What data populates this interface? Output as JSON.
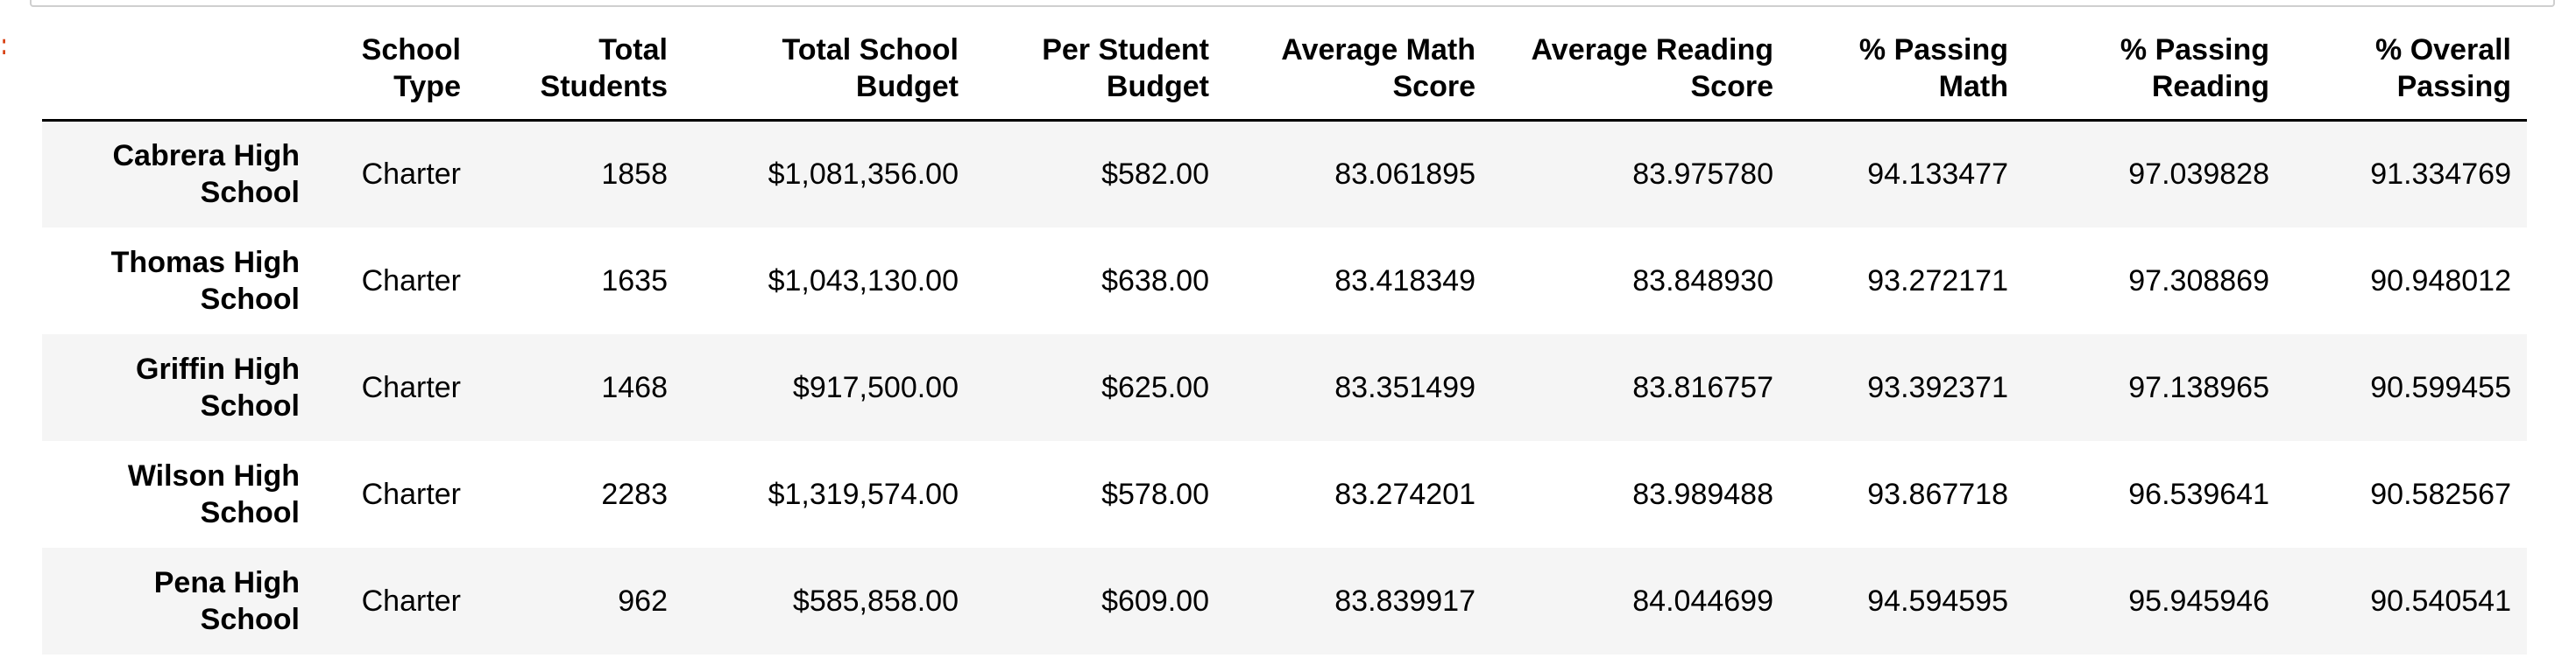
{
  "table": {
    "index_header": "",
    "columns": [
      [
        "School",
        "Type"
      ],
      [
        "Total",
        "Students"
      ],
      [
        "Total School",
        "Budget"
      ],
      [
        "Per Student",
        "Budget"
      ],
      [
        "Average Math",
        "Score"
      ],
      [
        "Average Reading",
        "Score"
      ],
      [
        "% Passing",
        "Math"
      ],
      [
        "% Passing",
        "Reading"
      ],
      [
        "% Overall",
        "Passing"
      ]
    ],
    "rows": [
      {
        "name": [
          "Cabrera High",
          "School"
        ],
        "values": [
          "Charter",
          "1858",
          "$1,081,356.00",
          "$582.00",
          "83.061895",
          "83.975780",
          "94.133477",
          "97.039828",
          "91.334769"
        ]
      },
      {
        "name": [
          "Thomas High",
          "School"
        ],
        "values": [
          "Charter",
          "1635",
          "$1,043,130.00",
          "$638.00",
          "83.418349",
          "83.848930",
          "93.272171",
          "97.308869",
          "90.948012"
        ]
      },
      {
        "name": [
          "Griffin High",
          "School"
        ],
        "values": [
          "Charter",
          "1468",
          "$917,500.00",
          "$625.00",
          "83.351499",
          "83.816757",
          "93.392371",
          "97.138965",
          "90.599455"
        ]
      },
      {
        "name": [
          "Wilson High",
          "School"
        ],
        "values": [
          "Charter",
          "2283",
          "$1,319,574.00",
          "$578.00",
          "83.274201",
          "83.989488",
          "93.867718",
          "96.539641",
          "90.582567"
        ]
      },
      {
        "name": [
          "Pena High",
          "School"
        ],
        "values": [
          "Charter",
          "962",
          "$585,858.00",
          "$609.00",
          "83.839917",
          "84.044699",
          "94.594595",
          "95.945946",
          "90.540541"
        ]
      }
    ]
  }
}
